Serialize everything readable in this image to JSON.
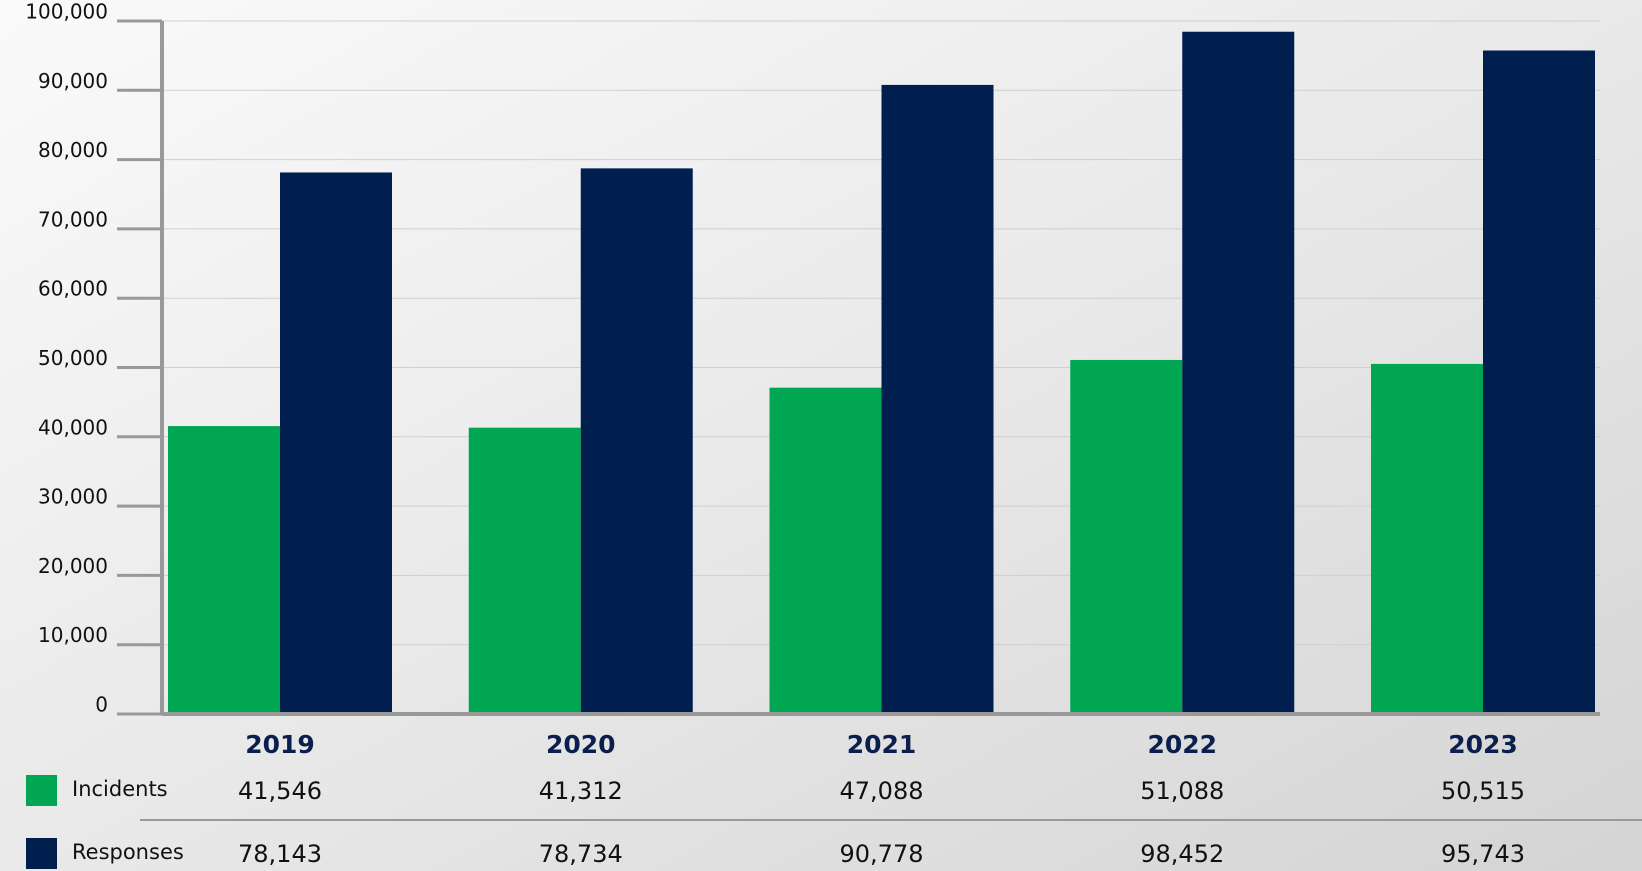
{
  "chart_data": {
    "type": "bar",
    "categories": [
      "2019",
      "2020",
      "2021",
      "2022",
      "2023"
    ],
    "series": [
      {
        "name": "Incidents",
        "color": "#00a651",
        "values": [
          41546,
          41312,
          47088,
          51088,
          50515
        ],
        "value_labels": [
          "41,546",
          "41,312",
          "47,088",
          "51,088",
          "50,515"
        ]
      },
      {
        "name": "Responses",
        "color": "#001f4f",
        "values": [
          78143,
          78734,
          90778,
          98452,
          95743
        ],
        "value_labels": [
          "78,143",
          "78,734",
          "90,778",
          "98,452",
          "95,743"
        ]
      }
    ],
    "ylim": [
      0,
      100000
    ],
    "yticks": [
      0,
      {
        "value": 10000,
        "label": "10,000"
      },
      {
        "value": 20000,
        "label": "20,000"
      },
      {
        "value": 30000,
        "label": "30,000"
      },
      {
        "value": 40000,
        "label": "40,000"
      },
      {
        "value": 50000,
        "label": "50,000"
      },
      {
        "value": 60000,
        "label": "60,000"
      },
      {
        "value": 70000,
        "label": "70,000"
      },
      {
        "value": 80000,
        "label": "80,000"
      },
      {
        "value": 90000,
        "label": "90,000"
      },
      {
        "value": 100000,
        "label": "100,000"
      }
    ],
    "grid": true
  }
}
